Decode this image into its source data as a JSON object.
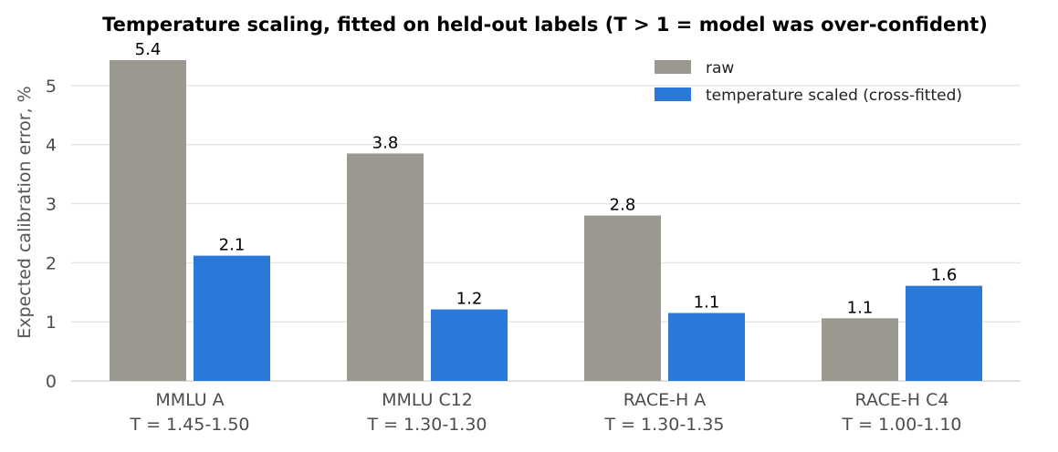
{
  "chart_data": {
    "type": "bar",
    "title": "Temperature scaling, fitted on held-out labels (T > 1 = model was over-confident)",
    "xlabel": "",
    "ylabel": "Expected calibration error, %",
    "ylim": [
      0,
      5.6
    ],
    "yticks": [
      0,
      1,
      2,
      3,
      4,
      5
    ],
    "grid": true,
    "legend_position": "top-right",
    "categories": [
      {
        "name": "MMLU A",
        "sub": "T = 1.45-1.50"
      },
      {
        "name": "MMLU C12",
        "sub": "T = 1.30-1.30"
      },
      {
        "name": "RACE-H A",
        "sub": "T = 1.30-1.35"
      },
      {
        "name": "RACE-H C4",
        "sub": "T = 1.00-1.10"
      }
    ],
    "series": [
      {
        "name": "raw",
        "color": "#9b9890",
        "values": [
          5.43,
          3.85,
          2.8,
          1.06
        ],
        "labels": [
          "5.4",
          "3.8",
          "2.8",
          "1.1"
        ]
      },
      {
        "name": "temperature scaled (cross-fitted)",
        "color": "#2a79d8",
        "values": [
          2.12,
          1.21,
          1.15,
          1.61
        ],
        "labels": [
          "2.1",
          "1.2",
          "1.1",
          "1.6"
        ]
      }
    ]
  }
}
